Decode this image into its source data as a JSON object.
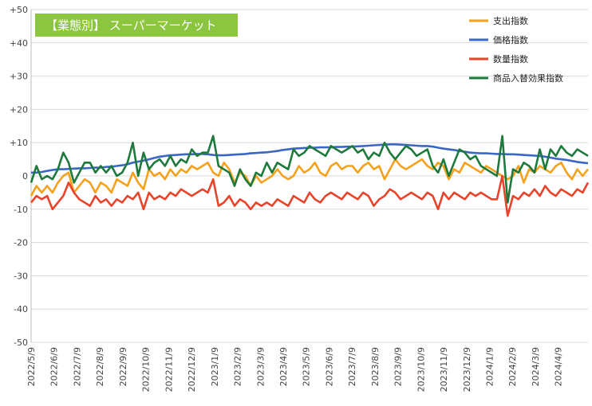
{
  "chart_data": {
    "type": "line",
    "title": "【業態別】 スーパーマーケット",
    "title_bg_color": "#8cc63f",
    "title_text_color": "#ffffff",
    "ylim": [
      -50,
      50
    ],
    "y_ticks": [
      "+50",
      "+40",
      "+30",
      "+20",
      "+10",
      "0",
      "-10",
      "-20",
      "-30",
      "-40",
      "-50"
    ],
    "y_tick_values": [
      50,
      40,
      30,
      20,
      10,
      0,
      -10,
      -20,
      -30,
      -40,
      -50
    ],
    "x_tick_labels": [
      "2022/5/9",
      "2022/6/9",
      "2022/7/9",
      "2022/8/9",
      "2022/9/9",
      "2022/10/9",
      "2022/11/9",
      "2022/12/9",
      "2023/1/9",
      "2023/2/9",
      "2023/3/9",
      "2023/4/9",
      "2023/5/9",
      "2023/6/9",
      "2023/7/9",
      "2023/8/9",
      "2023/9/9",
      "2023/10/9",
      "2023/11/9",
      "2023/12/9",
      "2024/1/9",
      "2024/2/9",
      "2024/3/9",
      "2024/4/9"
    ],
    "x_points_per_tick": 4.28,
    "n_points": 105,
    "grid": true,
    "legend_position": "top-right",
    "series": [
      {
        "name": "支出指数",
        "color": "#f5a11c",
        "values": [
          -6,
          -3,
          -5,
          -3,
          -5,
          -2,
          0,
          1,
          -5,
          -3,
          -1,
          -2,
          -5,
          -2,
          -3,
          -5,
          -1,
          -2,
          -3,
          1,
          -2,
          -4,
          2,
          0,
          1,
          -1,
          2,
          0,
          2,
          1,
          3,
          2,
          3,
          4,
          1,
          0,
          4,
          2,
          -2,
          1,
          0,
          -3,
          0,
          -2,
          -1,
          0,
          2,
          0,
          -1,
          0,
          3,
          1,
          2,
          4,
          1,
          0,
          3,
          4,
          2,
          3,
          3,
          1,
          3,
          4,
          2,
          3,
          -1,
          2,
          5,
          3,
          2,
          3,
          4,
          5,
          3,
          2,
          4,
          3,
          -1,
          2,
          1,
          4,
          3,
          2,
          1,
          3,
          2,
          1,
          0,
          -1,
          0,
          3,
          -2,
          2,
          1,
          3,
          2,
          1,
          3,
          4,
          1,
          -1,
          2,
          0,
          2
        ]
      },
      {
        "name": "価格指数",
        "color": "#3a67c4",
        "values": [
          1,
          1,
          1.2,
          1.5,
          1.8,
          2,
          2,
          2.1,
          2.2,
          2.3,
          2.3,
          2.4,
          2.5,
          2.5,
          2.7,
          2.8,
          3,
          3.2,
          3.5,
          4,
          4.3,
          4.6,
          5,
          5.4,
          5.8,
          6,
          6.2,
          6.3,
          6.4,
          6.5,
          6.5,
          6.6,
          6.6,
          6.5,
          6.3,
          6.2,
          6.2,
          6.3,
          6.4,
          6.5,
          6.6,
          6.8,
          6.9,
          7,
          7.1,
          7.3,
          7.5,
          7.8,
          8,
          8.2,
          8.3,
          8.4,
          8.5,
          8.5,
          8.6,
          8.6,
          8.6,
          8.7,
          8.7,
          8.8,
          8.8,
          8.9,
          9,
          9.1,
          9.2,
          9.3,
          9.4,
          9.5,
          9.5,
          9.4,
          9.3,
          9.2,
          9.1,
          9,
          9,
          8.8,
          8.5,
          8.2,
          8,
          7.8,
          7.5,
          7.3,
          7,
          6.9,
          6.8,
          6.8,
          6.7,
          6.6,
          6.6,
          6.5,
          6.5,
          6.4,
          6.3,
          6.2,
          6.1,
          6,
          5.8,
          5.5,
          5.2,
          5,
          4.8,
          4.5,
          4.2,
          4,
          3.8
        ]
      },
      {
        "name": "数量指数",
        "color": "#e8432b",
        "values": [
          -8,
          -6,
          -7,
          -6,
          -10,
          -8,
          -6,
          -2,
          -5,
          -7,
          -8,
          -9,
          -6,
          -8,
          -7,
          -9,
          -7,
          -8,
          -6,
          -7,
          -5,
          -10,
          -5,
          -7,
          -6,
          -7,
          -5,
          -6,
          -4,
          -5,
          -6,
          -5,
          -4,
          -5,
          -1,
          -9,
          -8,
          -6,
          -9,
          -7,
          -8,
          -10,
          -8,
          -9,
          -8,
          -9,
          -7,
          -8,
          -9,
          -6,
          -7,
          -8,
          -5,
          -7,
          -8,
          -6,
          -5,
          -6,
          -7,
          -5,
          -6,
          -7,
          -5,
          -6,
          -9,
          -7,
          -6,
          -4,
          -5,
          -7,
          -6,
          -5,
          -6,
          -7,
          -5,
          -6,
          -10,
          -5,
          -7,
          -5,
          -6,
          -7,
          -5,
          -6,
          -5,
          -6,
          -7,
          -7,
          0,
          -12,
          -6,
          -7,
          -5,
          -6,
          -4,
          -6,
          -3,
          -5,
          -6,
          -4,
          -5,
          -6,
          -4,
          -5,
          -2
        ]
      },
      {
        "name": "商品入替効果指数",
        "color": "#1e7a3c",
        "values": [
          -2,
          3,
          -1,
          0,
          -1,
          2,
          7,
          4,
          -2,
          1,
          4,
          4,
          1,
          3,
          1,
          3,
          0,
          1,
          4,
          10,
          0,
          7,
          2,
          4,
          5,
          3,
          6,
          3,
          5,
          4,
          8,
          6,
          7,
          7,
          12,
          3,
          2,
          1,
          -3,
          2,
          -1,
          -3,
          1,
          0,
          4,
          1,
          4,
          3,
          2,
          8,
          6,
          7,
          9,
          8,
          7,
          6,
          9,
          8,
          7,
          8,
          9,
          7,
          8,
          5,
          7,
          6,
          10,
          7,
          5,
          7,
          9,
          8,
          6,
          7,
          8,
          3,
          1,
          5,
          0,
          4,
          8,
          7,
          5,
          6,
          3,
          2,
          1,
          0,
          12,
          -8,
          2,
          1,
          4,
          3,
          1,
          8,
          2,
          8,
          6,
          9,
          7,
          6,
          8,
          7,
          6
        ]
      }
    ]
  }
}
